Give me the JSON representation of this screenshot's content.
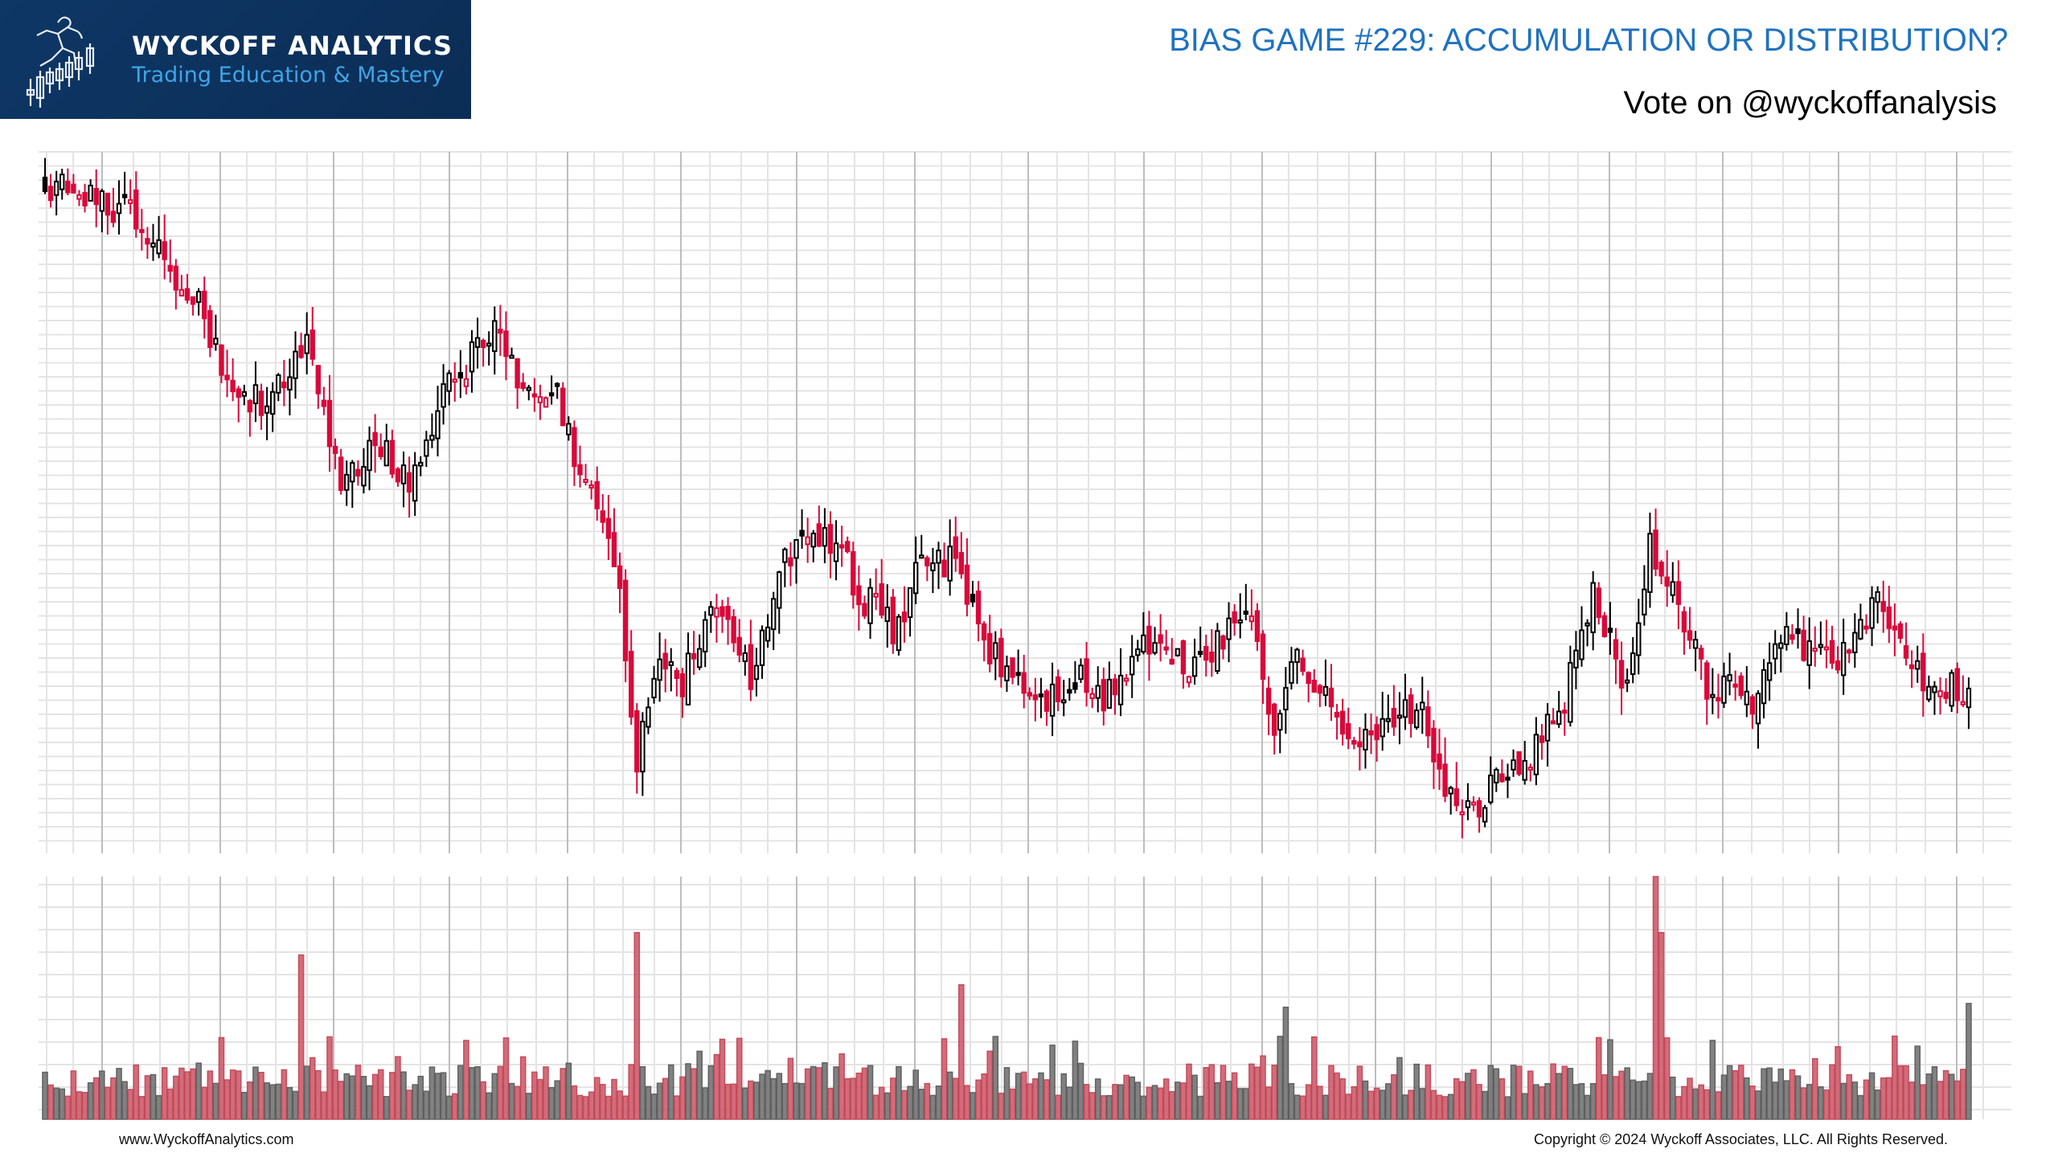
{
  "header": {
    "brand_title": "WYCKOFF ANALYTICS",
    "brand_subtitle": "Trading Education & Mastery",
    "title": "BIAS GAME #229: ACCUMULATION OR DISTRIBUTION?",
    "subtitle": "Vote on @wyckoffanalysis"
  },
  "footer": {
    "website": "www.WyckoffAnalytics.com",
    "copyright": "Copyright © 2024 Wyckoff Associates, LLC. All Rights Reserved."
  },
  "colors": {
    "title": "#1f72c0",
    "logo_bg": "#0d3461",
    "logo_sub": "#3fa4e6",
    "down_candle": "#d9083a",
    "up_candle_outline": "#000000",
    "volume_down": "#cf6070",
    "volume_up": "#777777",
    "grid_minor": "#e4e4e4",
    "grid_major": "#bdbdbd"
  },
  "chart_data": {
    "type": "candlestick",
    "title": "BIAS GAME #229: ACCUMULATION OR DISTRIBUTION?",
    "xlabel": "",
    "ylabel": "",
    "axis_labels_visible": false,
    "grid": true,
    "price_scale": "normalized 0-100 (no axis ticks shown)",
    "volume_scale": "normalized 0-100 (no axis ticks shown)",
    "price_waypoints": [
      [
        0,
        96
      ],
      [
        8,
        94
      ],
      [
        16,
        92
      ],
      [
        20,
        86
      ],
      [
        28,
        77
      ],
      [
        32,
        67
      ],
      [
        38,
        65
      ],
      [
        46,
        72
      ],
      [
        52,
        52
      ],
      [
        58,
        60
      ],
      [
        64,
        52
      ],
      [
        70,
        67
      ],
      [
        76,
        72
      ],
      [
        80,
        75
      ],
      [
        84,
        65
      ],
      [
        90,
        65
      ],
      [
        94,
        54
      ],
      [
        100,
        43
      ],
      [
        104,
        13
      ],
      [
        108,
        28
      ],
      [
        112,
        24
      ],
      [
        118,
        36
      ],
      [
        124,
        24
      ],
      [
        130,
        43
      ],
      [
        138,
        45
      ],
      [
        144,
        36
      ],
      [
        150,
        31
      ],
      [
        154,
        43
      ],
      [
        160,
        41
      ],
      [
        166,
        28
      ],
      [
        175,
        21
      ],
      [
        182,
        24
      ],
      [
        186,
        21
      ],
      [
        193,
        30
      ],
      [
        200,
        26
      ],
      [
        207,
        30
      ],
      [
        212,
        35
      ],
      [
        216,
        17
      ],
      [
        220,
        28
      ],
      [
        228,
        17
      ],
      [
        236,
        17
      ],
      [
        241,
        21
      ],
      [
        248,
        4
      ],
      [
        258,
        11
      ],
      [
        266,
        19
      ],
      [
        272,
        36
      ],
      [
        278,
        23
      ],
      [
        282,
        45
      ],
      [
        286,
        36
      ],
      [
        292,
        24
      ],
      [
        300,
        21
      ],
      [
        306,
        30
      ],
      [
        316,
        28
      ],
      [
        322,
        35
      ],
      [
        330,
        25
      ],
      [
        338,
        23
      ]
    ],
    "notable_events": [
      {
        "bar": 104,
        "desc": "sharp gap-down selloff to pane low region"
      },
      {
        "bar": 248,
        "desc": "swing low (lowest close)"
      },
      {
        "bar": 266,
        "desc": "long red hollow candle with extended low wick"
      },
      {
        "bar": 282,
        "desc": "spike high on climactic volume"
      },
      {
        "bar": 338,
        "desc": "final bar, hollow up candle on rising volume"
      }
    ],
    "volume_spikes": [
      {
        "bar": 104,
        "value": 100
      },
      {
        "bar": 45,
        "value": 88
      },
      {
        "bar": 161,
        "value": 72
      },
      {
        "bar": 218,
        "value": 60
      },
      {
        "bar": 283,
        "value": 130
      },
      {
        "bar": 284,
        "value": 100
      },
      {
        "bar": 338,
        "value": 62
      }
    ]
  }
}
